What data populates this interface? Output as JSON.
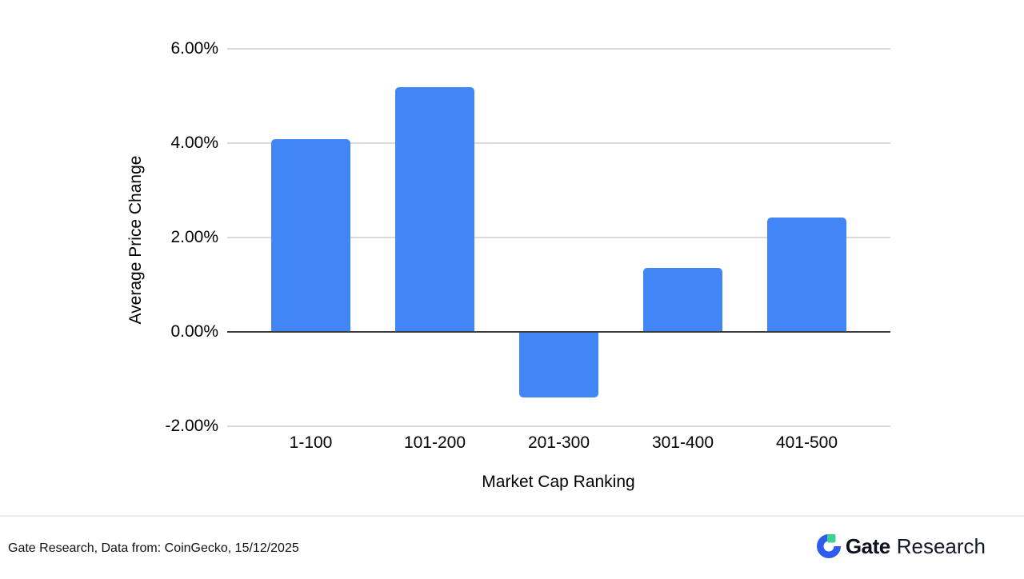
{
  "chart_data": {
    "type": "bar",
    "title": "",
    "categories": [
      "1-100",
      "101-200",
      "201-300",
      "301-400",
      "401-500"
    ],
    "values": [
      4.09,
      5.18,
      -1.38,
      1.35,
      2.43
    ],
    "xlabel": "Market Cap Ranking",
    "ylabel": "Average Price Change",
    "ylim": [
      -2,
      6
    ],
    "yticks": [
      {
        "value": 6,
        "label": "6.00%"
      },
      {
        "value": 4,
        "label": "4.00%"
      },
      {
        "value": 2,
        "label": "2.00%"
      },
      {
        "value": 0,
        "label": "0.00%"
      },
      {
        "value": -2,
        "label": "-2.00%"
      }
    ],
    "grid": true,
    "legend": false,
    "bar_color": "#4285F4",
    "gridline_color": "#d9d9d9",
    "zero_line_color": "#3c3c3c"
  },
  "footer": {
    "source_text": "Gate Research, Data from: CoinGecko, 15/12/2025",
    "logo": {
      "brand": "Gate",
      "suffix": "Research",
      "icon_blue": "#2E5CEC",
      "icon_green": "#3DD291"
    }
  }
}
